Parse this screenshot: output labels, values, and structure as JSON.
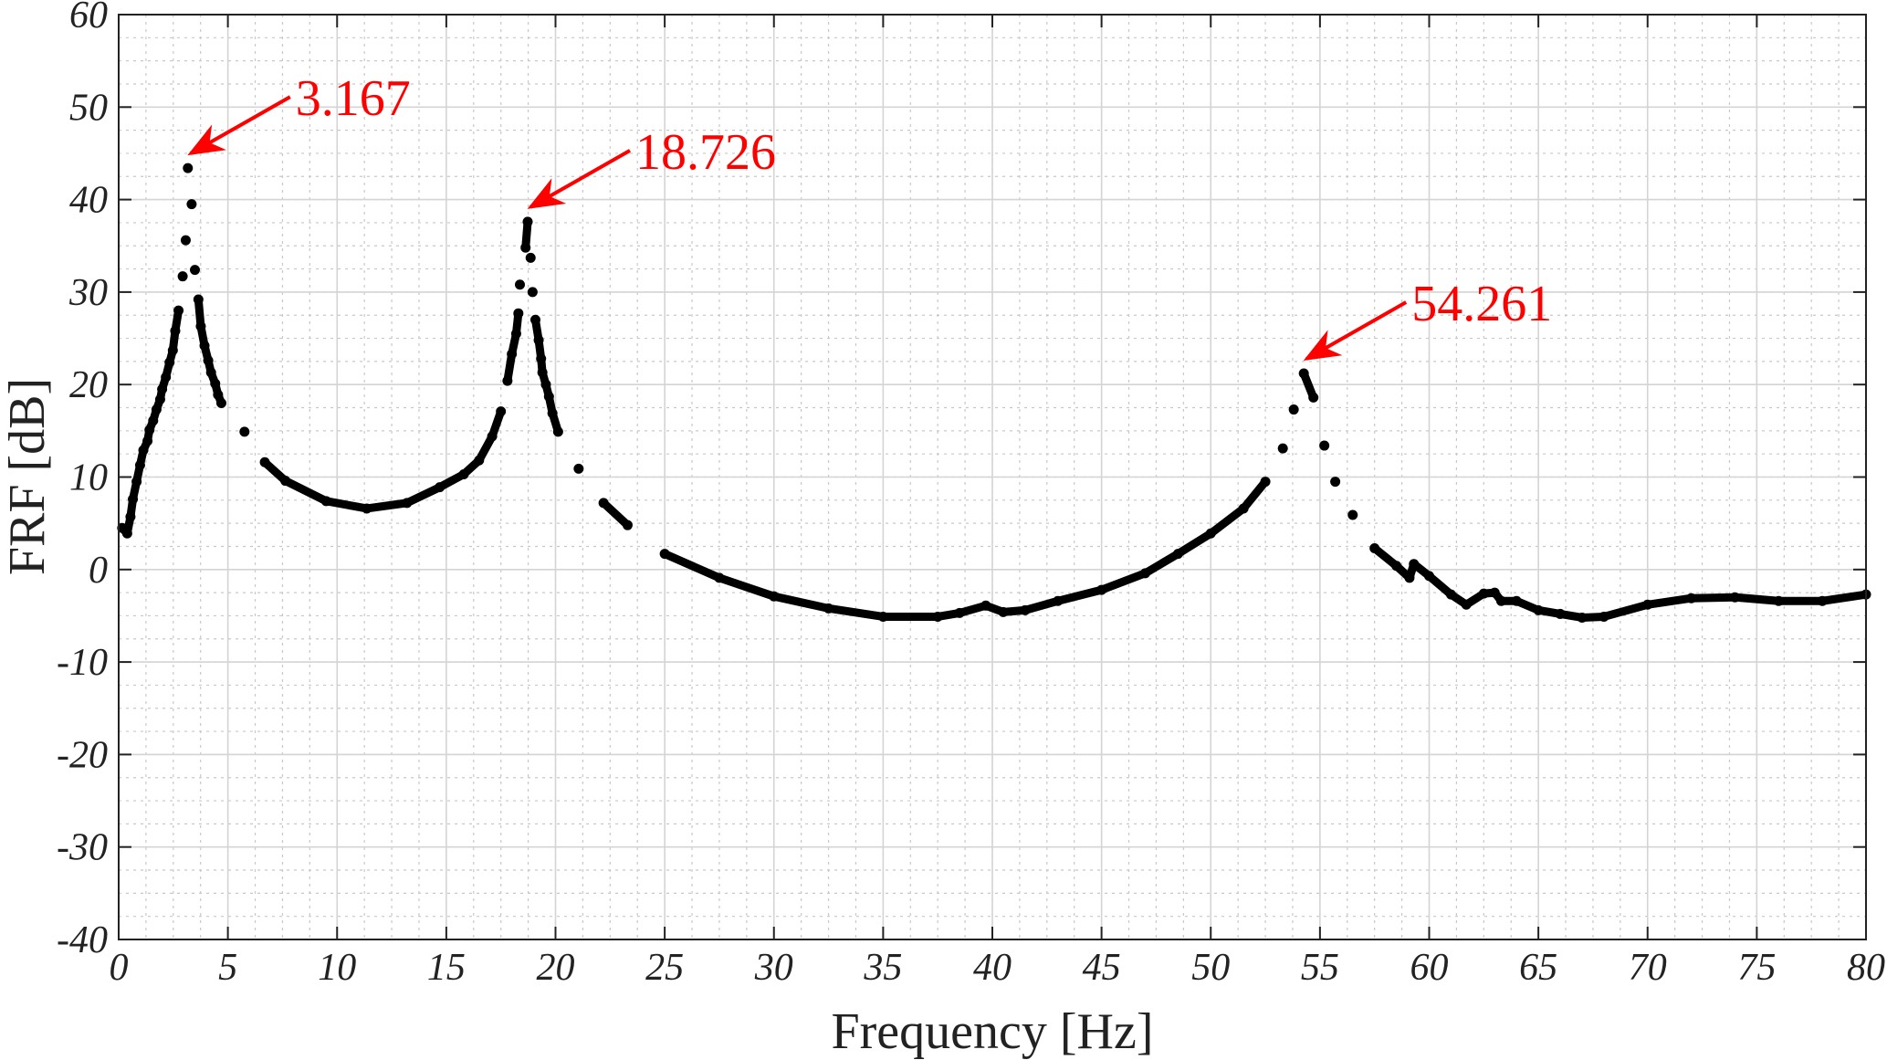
{
  "chart_data": {
    "type": "scatter",
    "title": "",
    "xlabel": "Frequency [Hz]",
    "ylabel": "FRF [dB]",
    "xlim": [
      0,
      80
    ],
    "ylim": [
      -40,
      60
    ],
    "xticks": [
      0,
      5,
      10,
      15,
      20,
      25,
      30,
      35,
      40,
      45,
      50,
      55,
      60,
      65,
      70,
      75,
      80
    ],
    "yticks": [
      -40,
      -30,
      -20,
      -10,
      0,
      10,
      20,
      30,
      40,
      50,
      60
    ],
    "grid": true,
    "minor_grid": true,
    "marker_color": "#000000",
    "annotation_color": "#ff0000",
    "x": [
      0.16,
      0.39,
      0.54,
      0.65,
      0.82,
      0.98,
      1.13,
      1.32,
      1.41,
      1.58,
      1.73,
      1.9,
      1.99,
      2.16,
      2.33,
      2.48,
      2.59,
      2.74,
      2.93,
      3.07,
      3.167,
      3.34,
      3.49,
      3.65,
      3.76,
      3.93,
      4.1,
      4.23,
      4.42,
      4.55,
      4.7,
      5.76,
      6.69,
      7.63,
      9.5,
      11.36,
      13.2,
      14.7,
      15.8,
      16.5,
      17.1,
      17.5,
      17.8,
      18.0,
      18.2,
      18.3,
      18.37,
      18.63,
      18.726,
      18.86,
      18.95,
      19.08,
      19.23,
      19.34,
      19.4,
      19.56,
      19.7,
      19.86,
      20.12,
      21.06,
      22.2,
      23.3,
      25,
      27.5,
      30,
      32.5,
      35,
      37.5,
      38.5,
      39.7,
      40.5,
      41.5,
      43,
      45,
      47,
      48.5,
      50,
      51.5,
      52.5,
      53.3,
      53.8,
      54.261,
      54.7,
      55.2,
      55.7,
      56.5,
      57.5,
      58.5,
      59.1,
      59.3,
      60,
      61,
      61.7,
      62.5,
      63,
      63.3,
      64,
      65,
      66,
      67,
      68,
      70,
      72,
      74,
      76,
      78,
      80
    ],
    "y": [
      4.5,
      3.9,
      5.7,
      7.6,
      9.5,
      11.3,
      12.9,
      13.9,
      15.1,
      16.1,
      17.3,
      18.4,
      19.5,
      20.8,
      22.4,
      23.7,
      25.8,
      28.0,
      31.7,
      35.6,
      43.4,
      39.5,
      32.4,
      29.2,
      26.3,
      24.2,
      22.6,
      21.3,
      20.1,
      18.9,
      18.0,
      14.9,
      11.6,
      9.6,
      7.4,
      6.6,
      7.2,
      8.9,
      10.3,
      11.8,
      14.4,
      17.1,
      20.4,
      23.3,
      25.5,
      27.7,
      30.8,
      34.8,
      37.6,
      33.7,
      30.0,
      27.0,
      24.8,
      22.8,
      21.3,
      20.0,
      18.7,
      16.9,
      14.9,
      10.9,
      7.2,
      4.8,
      1.7,
      -0.9,
      -2.9,
      -4.2,
      -5.1,
      -5.1,
      -4.7,
      -3.9,
      -4.6,
      -4.4,
      -3.4,
      -2.2,
      -0.4,
      1.7,
      3.9,
      6.6,
      9.5,
      13.1,
      17.3,
      21.2,
      18.6,
      13.4,
      9.5,
      5.9,
      2.3,
      0.4,
      -0.9,
      0.6,
      -0.7,
      -2.7,
      -3.8,
      -2.6,
      -2.5,
      -3.4,
      -3.4,
      -4.4,
      -4.8,
      -5.2,
      -5.1,
      -3.8,
      -3.1,
      -3.0,
      -3.4,
      -3.4,
      -2.7
    ],
    "annotations": [
      {
        "text": "3.167",
        "x": 3.167,
        "y": 43.4
      },
      {
        "text": "18.726",
        "x": 18.726,
        "y": 37.6
      },
      {
        "text": "54.261",
        "x": 54.261,
        "y": 21.2
      }
    ]
  }
}
